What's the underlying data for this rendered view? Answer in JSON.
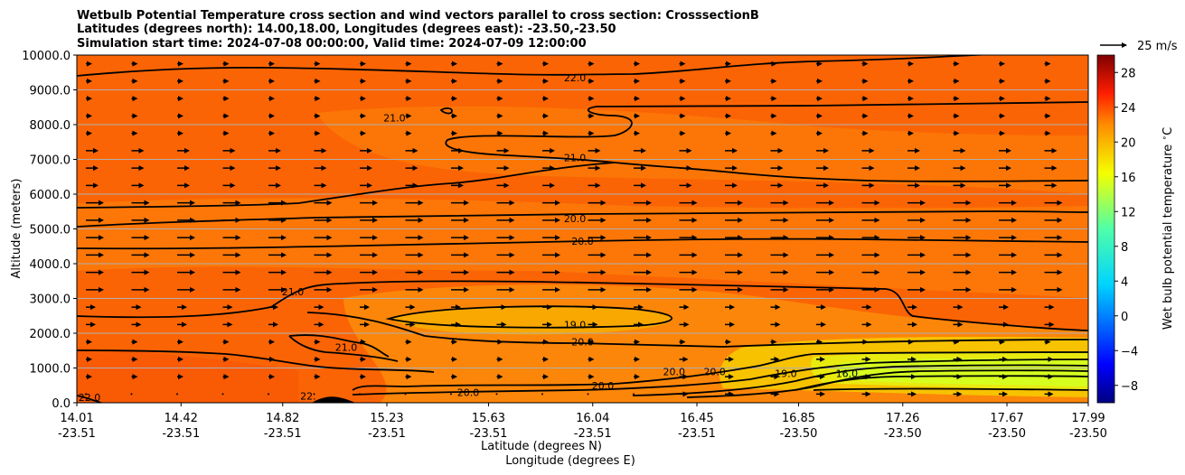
{
  "chart_data": {
    "type": "contourf",
    "title_lines": [
      "Wetbulb Potential Temperature cross section and wind vectors parallel to cross section: CrosssectionB",
      "Latitudes (degrees north): 14.00,18.00, Longitudes (degrees east): -23.50,-23.50",
      "Simulation start time: 2024-07-08 00:00:00, Valid time: 2024-07-09 12:00:00"
    ],
    "ylabel": "Altitude (meters)",
    "xlabel_lat": "Latitude (degrees N)",
    "xlabel_lon": "Longitude (degrees E)",
    "xlim": [
      14.01,
      17.99
    ],
    "ylim": [
      0,
      10000
    ],
    "x_ticks": [
      {
        "lat": "14.01",
        "lon": "-23.51"
      },
      {
        "lat": "14.42",
        "lon": "-23.51"
      },
      {
        "lat": "14.82",
        "lon": "-23.51"
      },
      {
        "lat": "15.23",
        "lon": "-23.51"
      },
      {
        "lat": "15.63",
        "lon": "-23.51"
      },
      {
        "lat": "16.04",
        "lon": "-23.51"
      },
      {
        "lat": "16.45",
        "lon": "-23.51"
      },
      {
        "lat": "16.85",
        "lon": "-23.50"
      },
      {
        "lat": "17.26",
        "lon": "-23.50"
      },
      {
        "lat": "17.67",
        "lon": "-23.50"
      },
      {
        "lat": "17.99",
        "lon": "-23.50"
      }
    ],
    "y_ticks": [
      "0.0",
      "1000.0",
      "2000.0",
      "3000.0",
      "4000.0",
      "5000.0",
      "6000.0",
      "7000.0",
      "8000.0",
      "9000.0",
      "10000.0"
    ],
    "grid": "horizontal",
    "colorbar": {
      "label": "Wet bulb potential temperature $^\\circ$C",
      "range": [
        -10,
        30
      ],
      "ticks": [
        "-8",
        "-4",
        "0",
        "4",
        "8",
        "12",
        "16",
        "20",
        "24",
        "28"
      ]
    },
    "quiver_key": {
      "label": "25 m/s",
      "speed": 25
    },
    "contour_labels": [
      {
        "text": "22.0",
        "lat": 15.97,
        "alt": 9350
      },
      {
        "text": "21.0",
        "lat": 15.26,
        "alt": 8200
      },
      {
        "text": "21.0",
        "lat": 15.97,
        "alt": 7050
      },
      {
        "text": "20.0",
        "lat": 15.97,
        "alt": 5300
      },
      {
        "text": "20.0",
        "lat": 16.0,
        "alt": 4650
      },
      {
        "text": "21.0",
        "lat": 14.86,
        "alt": 3200
      },
      {
        "text": "19.0",
        "lat": 15.97,
        "alt": 2250
      },
      {
        "text": "20.0",
        "lat": 16.0,
        "alt": 1750
      },
      {
        "text": "21.0",
        "lat": 15.07,
        "alt": 1600
      },
      {
        "text": "20.0",
        "lat": 16.36,
        "alt": 900
      },
      {
        "text": "20.0",
        "lat": 16.52,
        "alt": 900
      },
      {
        "text": "19.0",
        "lat": 16.8,
        "alt": 850
      },
      {
        "text": "16.0",
        "lat": 17.04,
        "alt": 850
      },
      {
        "text": "20.0",
        "lat": 16.08,
        "alt": 500
      },
      {
        "text": "20.0",
        "lat": 15.55,
        "alt": 300
      },
      {
        "text": "22.0",
        "lat": 14.06,
        "alt": 150
      },
      {
        "text": "22.",
        "lat": 14.92,
        "alt": 200
      }
    ]
  }
}
